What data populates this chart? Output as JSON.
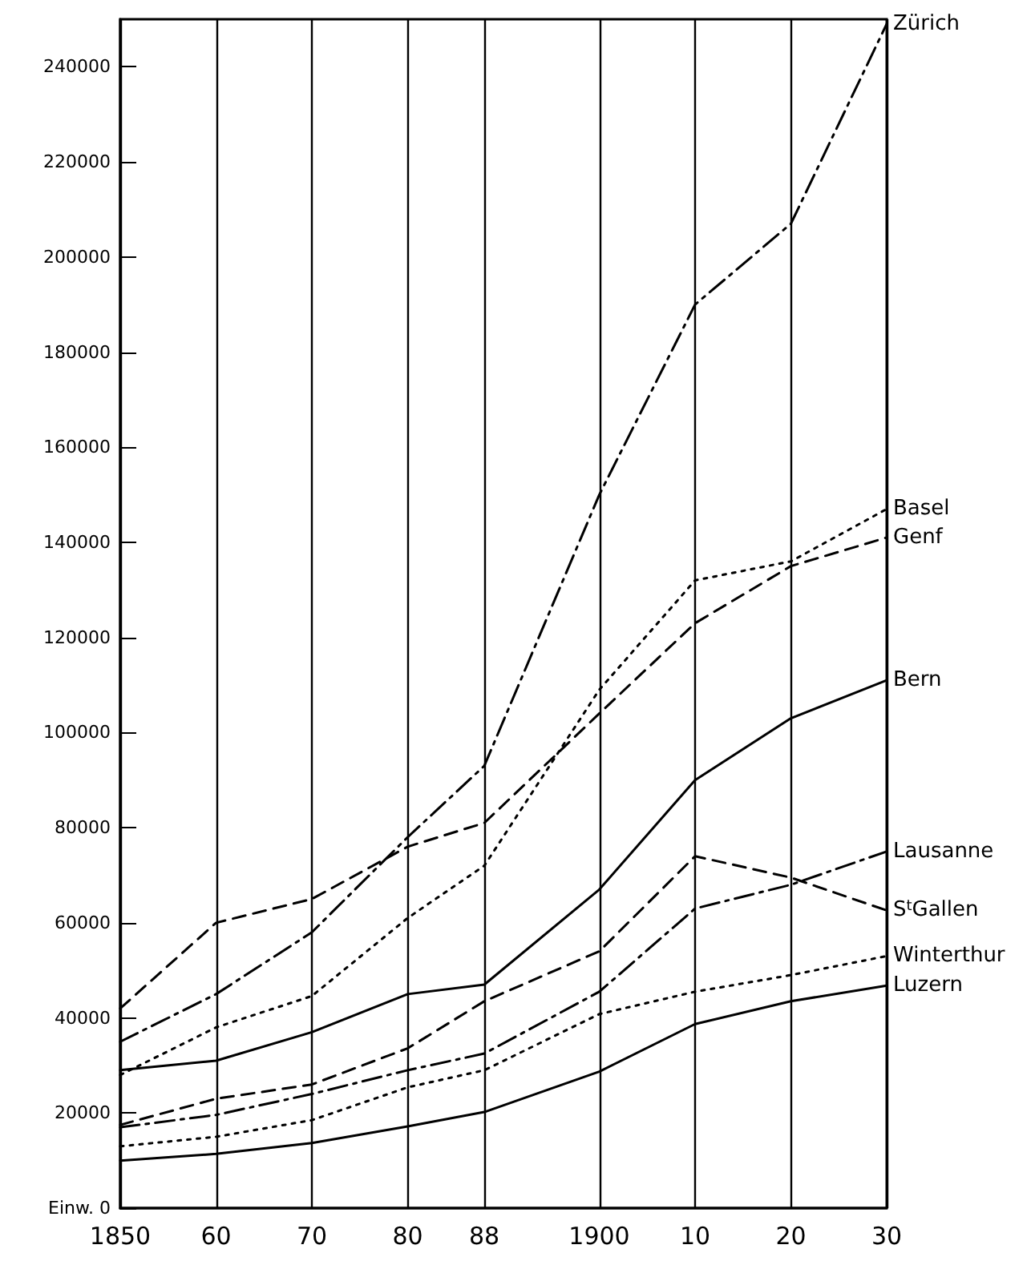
{
  "chart_data": {
    "type": "line",
    "x": [
      1850,
      1860,
      1870,
      1880,
      1888,
      1900,
      1910,
      1920,
      1930
    ],
    "xlim": [
      1850,
      1930
    ],
    "xticks": [
      1850,
      {
        "value": 1860,
        "label": "60"
      },
      {
        "value": 1870,
        "label": "70"
      },
      {
        "value": 1880,
        "label": "80"
      },
      {
        "value": 1888,
        "label": "88"
      },
      1900,
      {
        "value": 1910,
        "label": "10"
      },
      {
        "value": 1920,
        "label": "20"
      },
      {
        "value": 1930,
        "label": "30"
      }
    ],
    "ylim": [
      0,
      250000
    ],
    "yticks": [
      {
        "value": 0,
        "label": "Einw. 0"
      },
      20000,
      40000,
      60000,
      80000,
      100000,
      120000,
      140000,
      160000,
      180000,
      200000,
      220000,
      240000
    ],
    "grid": "x",
    "legend": false,
    "marker": "none",
    "series": [
      {
        "name": "Zürich",
        "color": "#000000",
        "line_style": "dashdot",
        "values": [
          35000,
          45000,
          58000,
          78000,
          93000,
          150000,
          190000,
          207000,
          249000
        ]
      },
      {
        "name": "Basel",
        "color": "#000000",
        "line_style": "dotted",
        "values": [
          28000,
          38000,
          44600,
          61000,
          72000,
          109000,
          132000,
          136000,
          147000
        ]
      },
      {
        "name": "Genf",
        "color": "#000000",
        "line_style": "dashed",
        "values": [
          42000,
          60000,
          65000,
          76000,
          81000,
          104000,
          123000,
          135000,
          141000
        ]
      },
      {
        "name": "Bern",
        "color": "#000000",
        "line_style": "solid",
        "values": [
          29000,
          31000,
          37000,
          45000,
          47000,
          67000,
          90000,
          103000,
          111000
        ]
      },
      {
        "name": "Lausanne",
        "color": "#000000",
        "line_style": "dashdot",
        "values": [
          17000,
          19600,
          24000,
          29000,
          32500,
          45500,
          63000,
          68000,
          75000
        ]
      },
      {
        "name": "S$^{t}$Gallen",
        "color": "#000000",
        "line_style": "dashed",
        "values": [
          17500,
          23000,
          26000,
          33600,
          43500,
          54000,
          74000,
          69500,
          62600
        ]
      },
      {
        "name": "Winterthur",
        "color": "#000000",
        "line_style": "dotted",
        "values": [
          13000,
          15000,
          18500,
          25400,
          29000,
          40800,
          45500,
          49000,
          53000
        ]
      },
      {
        "name": "Luzern",
        "color": "#000000",
        "line_style": "solid",
        "values": [
          10000,
          11400,
          13700,
          17200,
          20200,
          28700,
          38700,
          43500,
          46800
        ]
      }
    ]
  }
}
